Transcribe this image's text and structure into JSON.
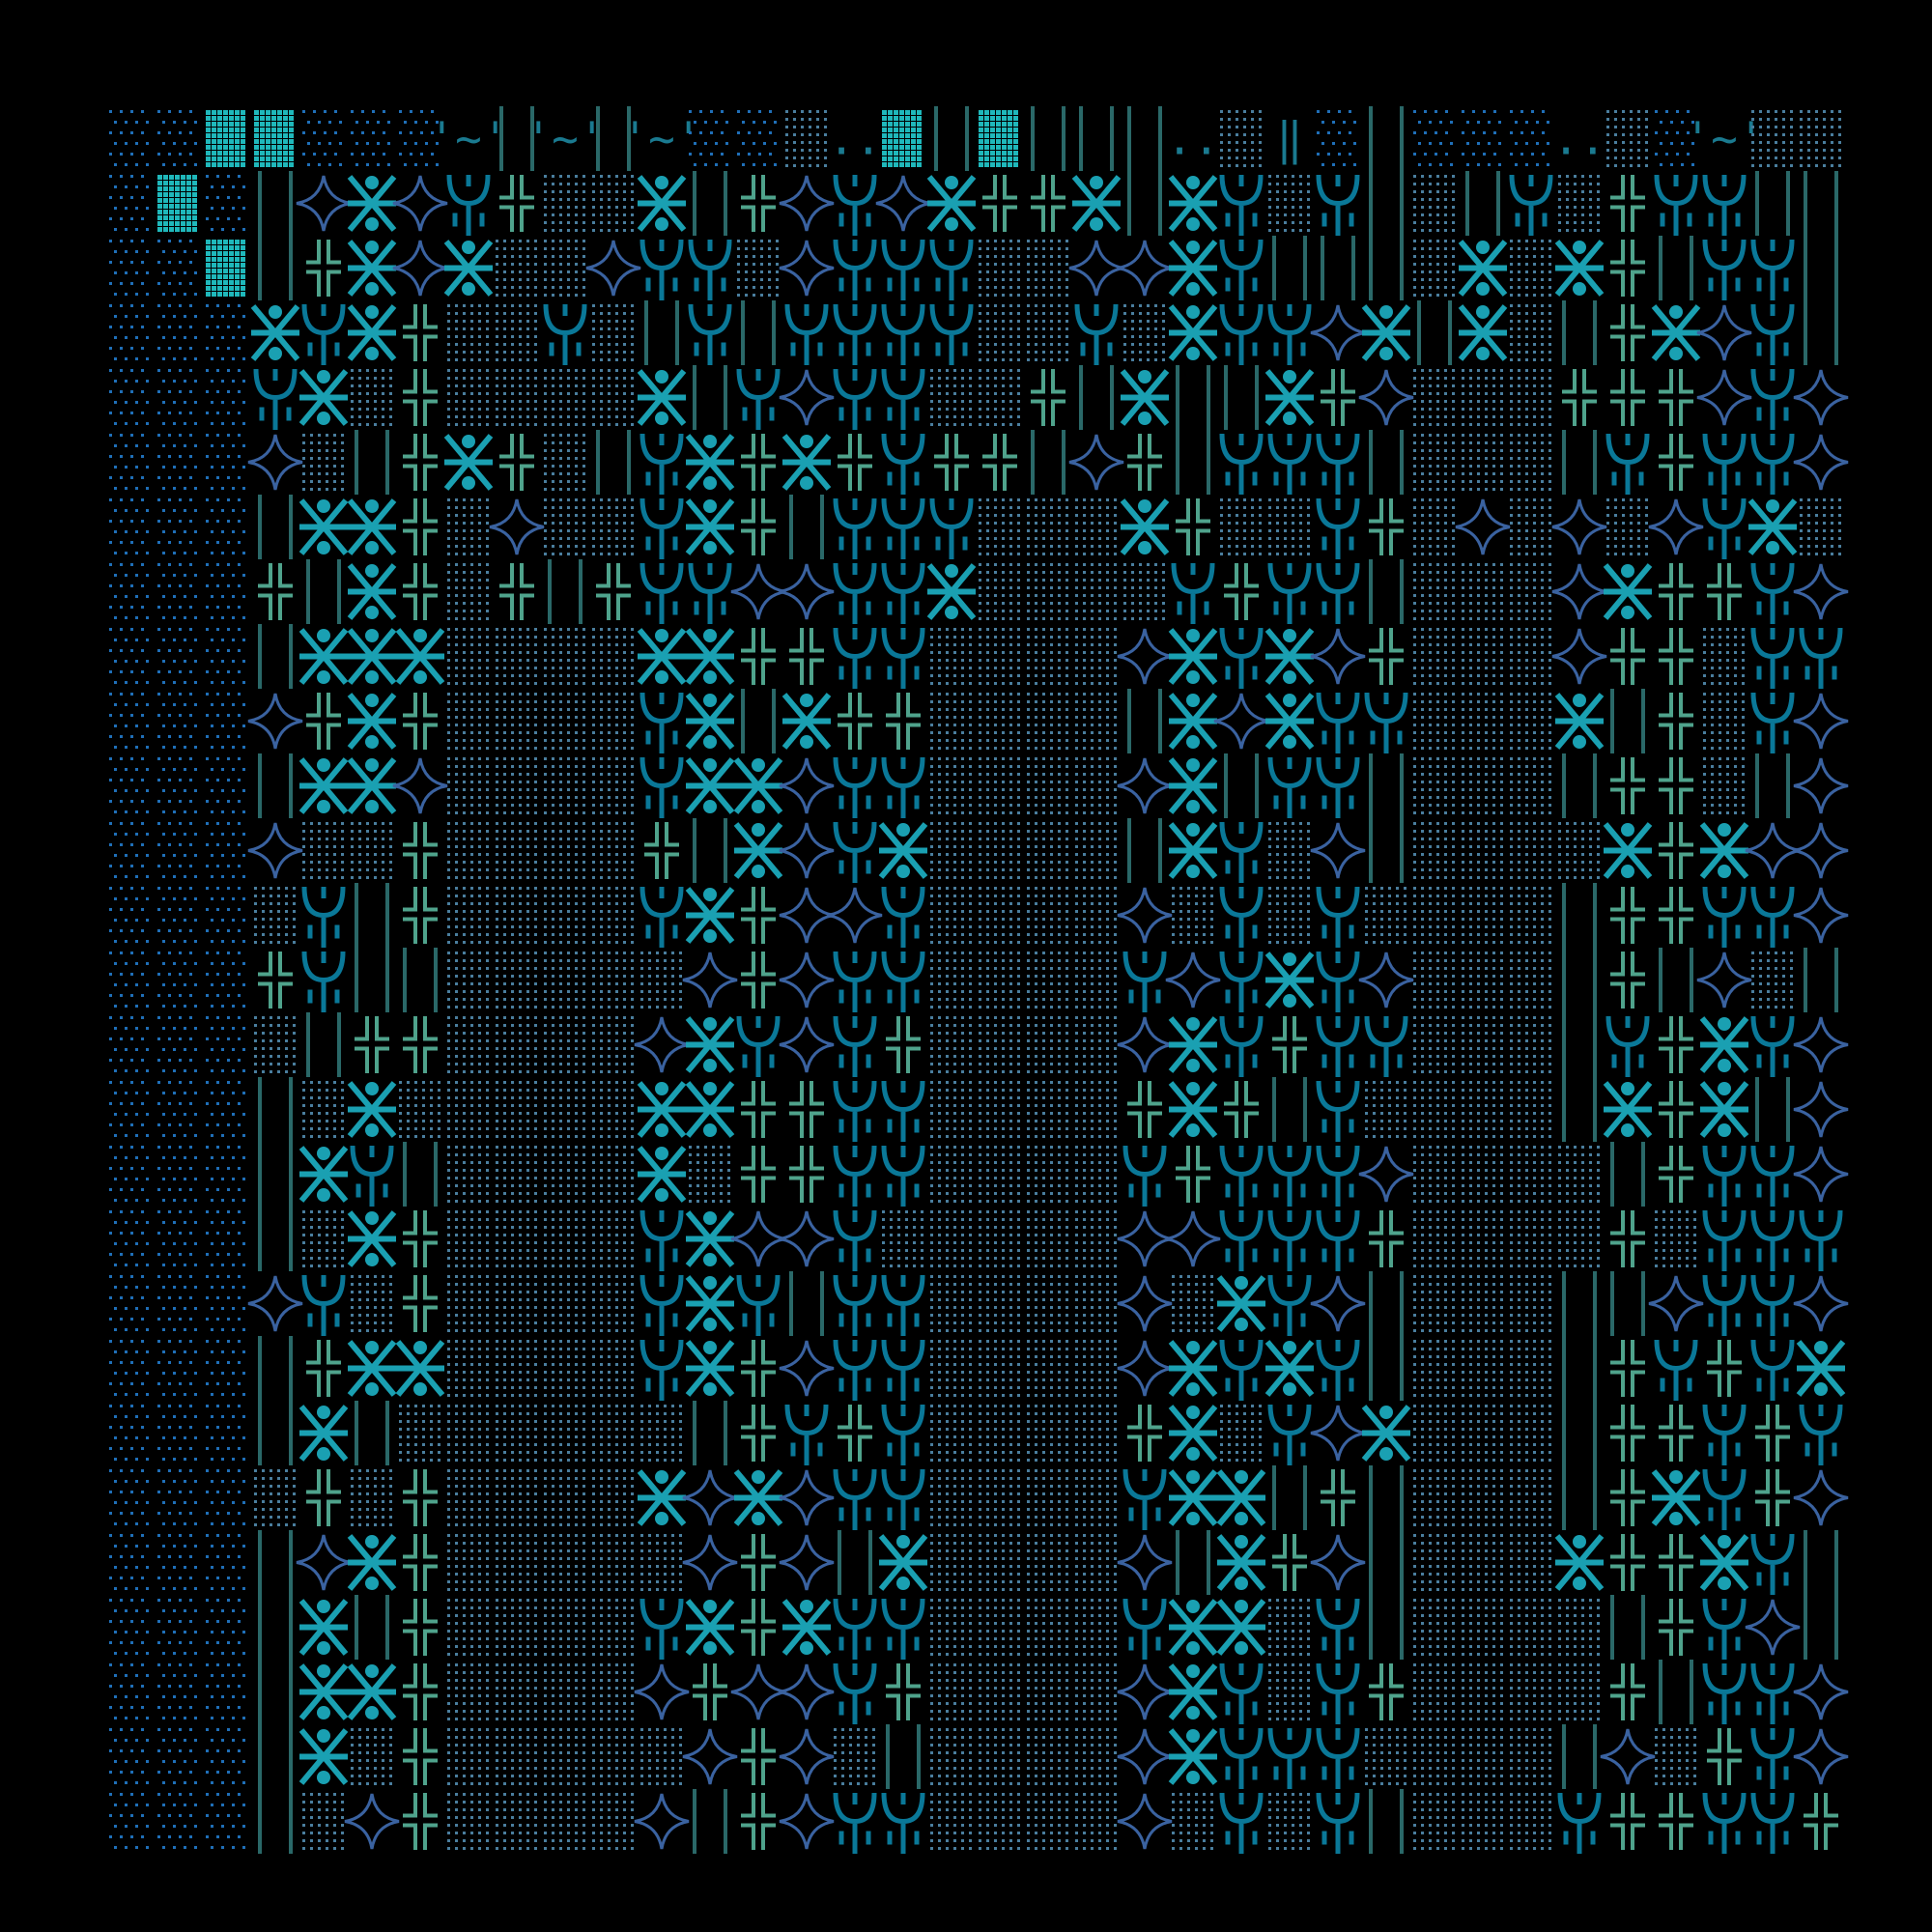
{
  "palette": {
    "background": "#000000",
    "blue_dots": "#1f6fb8",
    "gray_dots": "#4a7e9e",
    "dense_block": "#1fb8bb",
    "double_cross": "#4fa38c",
    "trident": "#0a7898",
    "star": "#3a62a0",
    "asterisk_figure": "#1aa0b2",
    "bars": "#2a6868",
    "ascii": "#1a7a90"
  },
  "glyphs": [
    "dot-grid",
    "dense-block",
    "double-cross",
    "trident",
    "four-point-star",
    "asterisk-figure",
    "double-bar",
    "ascii"
  ],
  "ascii_tokens": [
    "#",
    "'~'",
    "..",
    "‖"
  ]
}
